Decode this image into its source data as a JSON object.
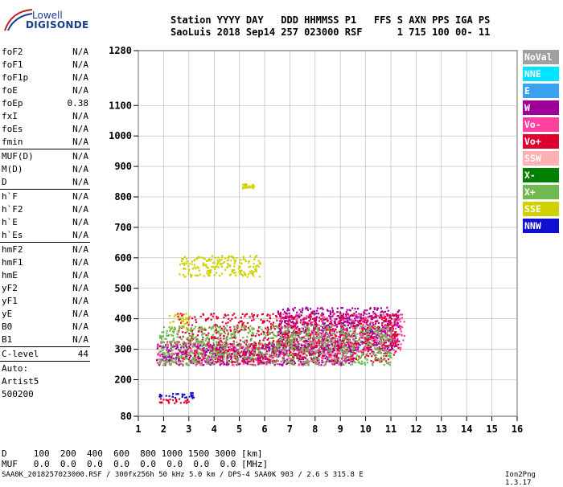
{
  "logo": {
    "line1": "Lowell",
    "line2": "DIGISONDE"
  },
  "header": {
    "labels": "Station YYYY DAY   DDD HHMMSS P1   FFS S AXN PPS IGA PS",
    "values": "SaoLuis 2018 Sep14 257 023000 RSF      1 715 100 00- 11"
  },
  "params": [
    {
      "k": "foF2",
      "v": "N/A"
    },
    {
      "k": "foF1",
      "v": "N/A"
    },
    {
      "k": "foF1p",
      "v": "N/A"
    },
    {
      "k": "foE",
      "v": "N/A"
    },
    {
      "k": "foEp",
      "v": "0.38"
    },
    {
      "k": "fxI",
      "v": "N/A"
    },
    {
      "k": "foEs",
      "v": "N/A"
    },
    {
      "k": "fmin",
      "v": "N/A"
    },
    {
      "k": "MUF(D)",
      "v": "N/A"
    },
    {
      "k": "M(D)",
      "v": "N/A"
    },
    {
      "k": "D",
      "v": "N/A"
    },
    {
      "k": "h`F",
      "v": "N/A"
    },
    {
      "k": "h`F2",
      "v": "N/A"
    },
    {
      "k": "h`E",
      "v": "N/A"
    },
    {
      "k": "h`Es",
      "v": "N/A"
    },
    {
      "k": "hmF2",
      "v": "N/A"
    },
    {
      "k": "hmF1",
      "v": "N/A"
    },
    {
      "k": "hmE",
      "v": "N/A"
    },
    {
      "k": "yF2",
      "v": "N/A"
    },
    {
      "k": "yF1",
      "v": "N/A"
    },
    {
      "k": "yE",
      "v": "N/A"
    },
    {
      "k": "B0",
      "v": "N/A"
    },
    {
      "k": "B1",
      "v": "N/A"
    },
    {
      "k": "C-level",
      "v": "44"
    },
    {
      "k": "Auto:",
      "v": ""
    },
    {
      "k": "Artist5",
      "v": ""
    },
    {
      "k": "500200",
      "v": ""
    }
  ],
  "legend": [
    {
      "label": "NoVal",
      "color": "#a0a0a0"
    },
    {
      "label": "NNE",
      "color": "#00e5ff"
    },
    {
      "label": "E",
      "color": "#3aa0f0"
    },
    {
      "label": "W",
      "color": "#a0009a"
    },
    {
      "label": "Vo-",
      "color": "#ff40a0"
    },
    {
      "label": "Vo+",
      "color": "#e00030"
    },
    {
      "label": "SSW",
      "color": "#ffb0b0"
    },
    {
      "label": "X-",
      "color": "#008000"
    },
    {
      "label": "X+",
      "color": "#70b850"
    },
    {
      "label": "SSE",
      "color": "#d0d000"
    },
    {
      "label": "NNW",
      "color": "#1010d0"
    }
  ],
  "dmuf": {
    "d": "D     100  200  400  600  800 1000 1500 3000 [km]",
    "muf": "MUF   0.0  0.0  0.0  0.0  0.0  0.0  0.0  0.0 [MHz]"
  },
  "footer": "SAA0K_2018257023000.RSF / 300fx256h 50 kHz 5.0 km / DPS-4 SAA0K 903 / 2.6 S 315.8 E",
  "version": "Ion2Png 1.3.17",
  "chart_data": {
    "type": "scatter",
    "title": "",
    "xlabel": "",
    "ylabel": "",
    "xlim": [
      1,
      16
    ],
    "ylim": [
      80,
      1280
    ],
    "x_ticks": [
      1,
      2,
      3,
      4,
      5,
      6,
      7,
      8,
      9,
      10,
      11,
      12,
      13,
      14,
      15,
      16
    ],
    "y_ticks": [
      80,
      200,
      300,
      400,
      500,
      600,
      700,
      800,
      900,
      1000,
      1100,
      1280
    ],
    "series": [
      {
        "name": "Vo-",
        "color_ref": "Vo-",
        "clusters": [
          {
            "x": [
              1.7,
              9.5
            ],
            "y": [
              250,
              330
            ]
          },
          {
            "x": [
              6.5,
              11.5
            ],
            "y": [
              290,
              420
            ]
          }
        ]
      },
      {
        "name": "W",
        "color_ref": "W",
        "clusters": [
          {
            "x": [
              1.7,
              9.5
            ],
            "y": [
              250,
              320
            ]
          },
          {
            "x": [
              6.5,
              11.3
            ],
            "y": [
              300,
              440
            ]
          }
        ]
      },
      {
        "name": "Vo+",
        "color_ref": "Vo+",
        "clusters": [
          {
            "x": [
              2.5,
              11.3
            ],
            "y": [
              260,
              420
            ]
          },
          {
            "x": [
              1.8,
              3.0
            ],
            "y": [
              125,
              140
            ]
          }
        ]
      },
      {
        "name": "SSE",
        "color_ref": "SSE",
        "clusters": [
          {
            "x": [
              2.6,
              5.8
            ],
            "y": [
              540,
              610
            ]
          },
          {
            "x": [
              5.1,
              5.6
            ],
            "y": [
              830,
              845
            ]
          },
          {
            "x": [
              2.2,
              3.0
            ],
            "y": [
              370,
              420
            ]
          }
        ]
      },
      {
        "name": "X+",
        "color_ref": "X+",
        "clusters": [
          {
            "x": [
              1.8,
              11.0
            ],
            "y": [
              250,
              380
            ]
          }
        ]
      },
      {
        "name": "NNW",
        "color_ref": "NNW",
        "clusters": [
          {
            "x": [
              1.8,
              3.2
            ],
            "y": [
              140,
              160
            ]
          }
        ]
      }
    ]
  }
}
